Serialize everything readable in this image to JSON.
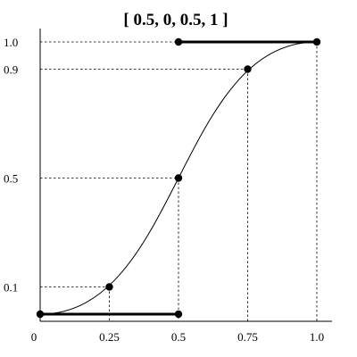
{
  "chart_data": {
    "type": "line",
    "title": "[ 0.5, 0, 0.5, 1 ]",
    "xlabel": "",
    "ylabel": "",
    "xlim": [
      0,
      1
    ],
    "ylim": [
      0,
      1
    ],
    "grid": false,
    "x_ticks": [
      {
        "value": 0,
        "label": "0"
      },
      {
        "value": 0.25,
        "label": "0.25"
      },
      {
        "value": 0.5,
        "label": "0.5"
      },
      {
        "value": 0.75,
        "label": "0.75"
      },
      {
        "value": 1,
        "label": "1.0"
      }
    ],
    "y_ticks": [
      {
        "value": 0.1,
        "label": "0.1"
      },
      {
        "value": 0.5,
        "label": "0.5"
      },
      {
        "value": 0.9,
        "label": "0.9"
      },
      {
        "value": 1,
        "label": "1.0"
      }
    ],
    "control_points": [
      [
        0,
        0
      ],
      [
        0.5,
        0
      ],
      [
        0.5,
        1
      ],
      [
        1,
        1
      ]
    ],
    "handles": [
      [
        [
          0,
          0
        ],
        [
          0.5,
          0
        ]
      ],
      [
        [
          0.5,
          1
        ],
        [
          1,
          1
        ]
      ]
    ],
    "curve_points": [
      {
        "x": 0.25,
        "y": 0.1
      },
      {
        "x": 0.5,
        "y": 0.5
      },
      {
        "x": 0.75,
        "y": 0.9
      }
    ]
  }
}
